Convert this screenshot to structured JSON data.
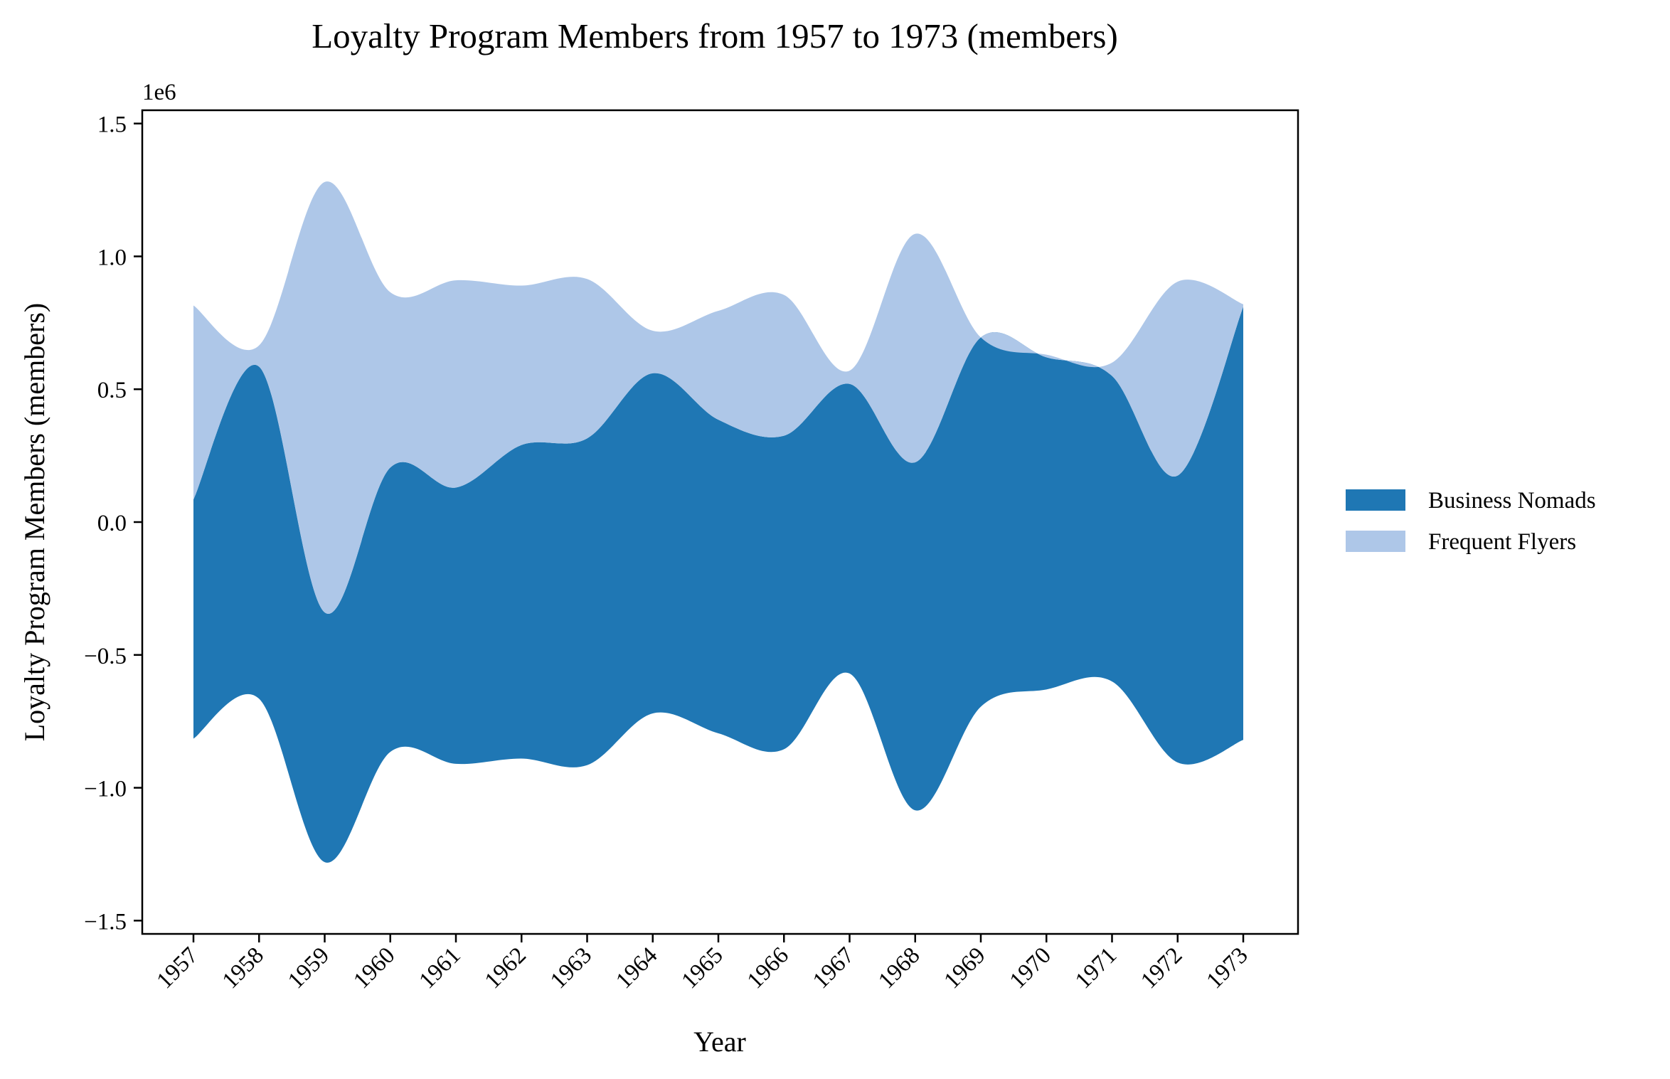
{
  "chart_data": {
    "type": "area",
    "subtype": "streamgraph",
    "title": "Loyalty Program Members from 1957 to 1973 (members)",
    "xlabel": "Year",
    "ylabel": "Loyalty Program Members (members)",
    "y_offset_label": "1e6",
    "categories": [
      "1957",
      "1958",
      "1959",
      "1960",
      "1961",
      "1962",
      "1963",
      "1964",
      "1965",
      "1966",
      "1967",
      "1968",
      "1969",
      "1970",
      "1971",
      "1972",
      "1973"
    ],
    "y_ticks": [
      {
        "value": 1.5,
        "label": "1.5"
      },
      {
        "value": 1.0,
        "label": "1.0"
      },
      {
        "value": 0.5,
        "label": "0.5"
      },
      {
        "value": 0.0,
        "label": "0.0"
      },
      {
        "value": -0.5,
        "label": "−0.5"
      },
      {
        "value": -1.0,
        "label": "−1.0"
      },
      {
        "value": -1.5,
        "label": "−1.5"
      }
    ],
    "ylim": [
      -1.55,
      1.55
    ],
    "series": [
      {
        "name": "Business Nomads",
        "color": "#1f77b4",
        "values": [
          900000,
          1250000,
          940000,
          1070000,
          1040000,
          1180000,
          1230000,
          1280000,
          1180000,
          1180000,
          1090000,
          1310000,
          1390000,
          1250000,
          1150000,
          1080000,
          1630000
        ]
      },
      {
        "name": "Frequent Flyers",
        "color": "#aec7e8",
        "values": [
          730000,
          80000,
          1620000,
          660000,
          780000,
          600000,
          600000,
          160000,
          410000,
          530000,
          50000,
          860000,
          0,
          10000,
          50000,
          730000,
          10000
        ]
      }
    ],
    "legend_position": "right",
    "grid": false
  }
}
